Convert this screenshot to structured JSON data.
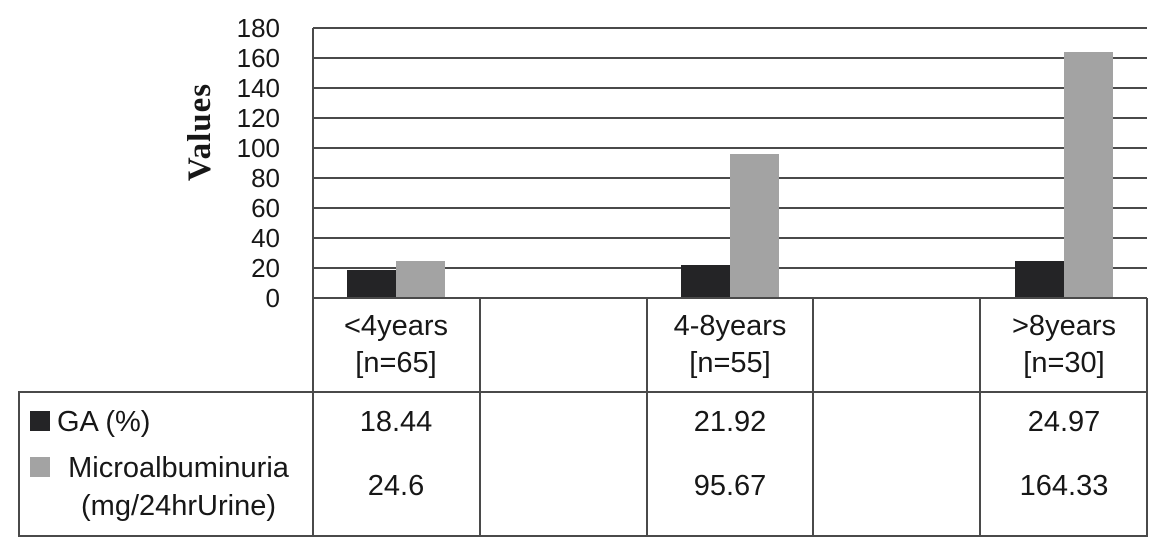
{
  "figure": {
    "background": "#ffffff",
    "line_color": "#4a4a4a",
    "text_color": "#171717"
  },
  "chart_data": {
    "type": "bar",
    "title": "",
    "xlabel": "",
    "ylabel": "Values",
    "ylim": [
      0,
      180
    ],
    "ytick_step": 20,
    "yticks": [
      0,
      20,
      40,
      60,
      80,
      100,
      120,
      140,
      160,
      180
    ],
    "grid": "horizontal gridlines every 20",
    "legend_position": "data-table left column",
    "categories": [
      "<4years [n=65]",
      "4-8years [n=55]",
      ">8years [n=30]"
    ],
    "category_lines": [
      [
        "<4years",
        "[n=65]"
      ],
      [
        "4-8years",
        "[n=55]"
      ],
      [
        ">8years",
        "[n=30]"
      ]
    ],
    "series": [
      {
        "name": "GA (%)",
        "name_lines": [
          "GA (%)"
        ],
        "color": "#242426",
        "values": [
          18.44,
          21.92,
          24.97
        ]
      },
      {
        "name": "Microalbuminuria (mg/24hrUrine)",
        "name_lines": [
          "Microalbuminuria",
          "(mg/24hrUrine)"
        ],
        "color": "#a3a3a3",
        "values": [
          24.6,
          95.67,
          164.33
        ]
      }
    ],
    "data_table": {
      "shown": true,
      "rows": [
        {
          "label": "GA (%)",
          "cells": [
            "18.44",
            "21.92",
            "24.97"
          ]
        },
        {
          "label": "Microalbuminuria (mg/24hrUrine)",
          "cells": [
            "24.6",
            "95.67",
            "164.33"
          ]
        }
      ]
    }
  }
}
